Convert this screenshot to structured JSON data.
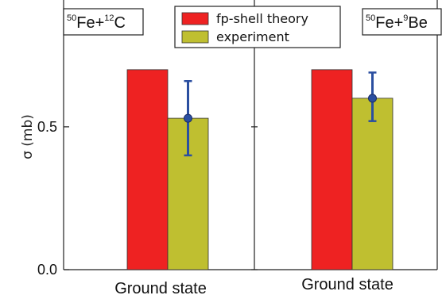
{
  "chart_data": {
    "type": "bar",
    "ylabel": "σ (mb)",
    "yticks": [
      {
        "value": 0.0,
        "label": "0.0"
      },
      {
        "value": 0.5,
        "label": "0.5"
      }
    ],
    "ylim": [
      0,
      0.93
    ],
    "panels": [
      {
        "reaction": {
          "sup1": "50",
          "el1": "Fe",
          "plus": "+",
          "sup2": "12",
          "el2": "C"
        },
        "category": "Ground state",
        "theory": 0.7,
        "experiment": {
          "value": 0.53,
          "err_low": 0.4,
          "err_high": 0.66
        }
      },
      {
        "reaction": {
          "sup1": "50",
          "el1": "Fe",
          "plus": "+",
          "sup2": "9",
          "el2": "Be"
        },
        "category": "Ground state",
        "theory": 0.7,
        "experiment": {
          "value": 0.6,
          "err_low": 0.52,
          "err_high": 0.69
        }
      }
    ],
    "series": [
      {
        "name": "fp-shell theory",
        "color": "#ee2222"
      },
      {
        "name": "experiment",
        "color": "#bfbf30"
      }
    ],
    "errorbar_color": "#2b4fa0",
    "legend_position": "top-center"
  }
}
